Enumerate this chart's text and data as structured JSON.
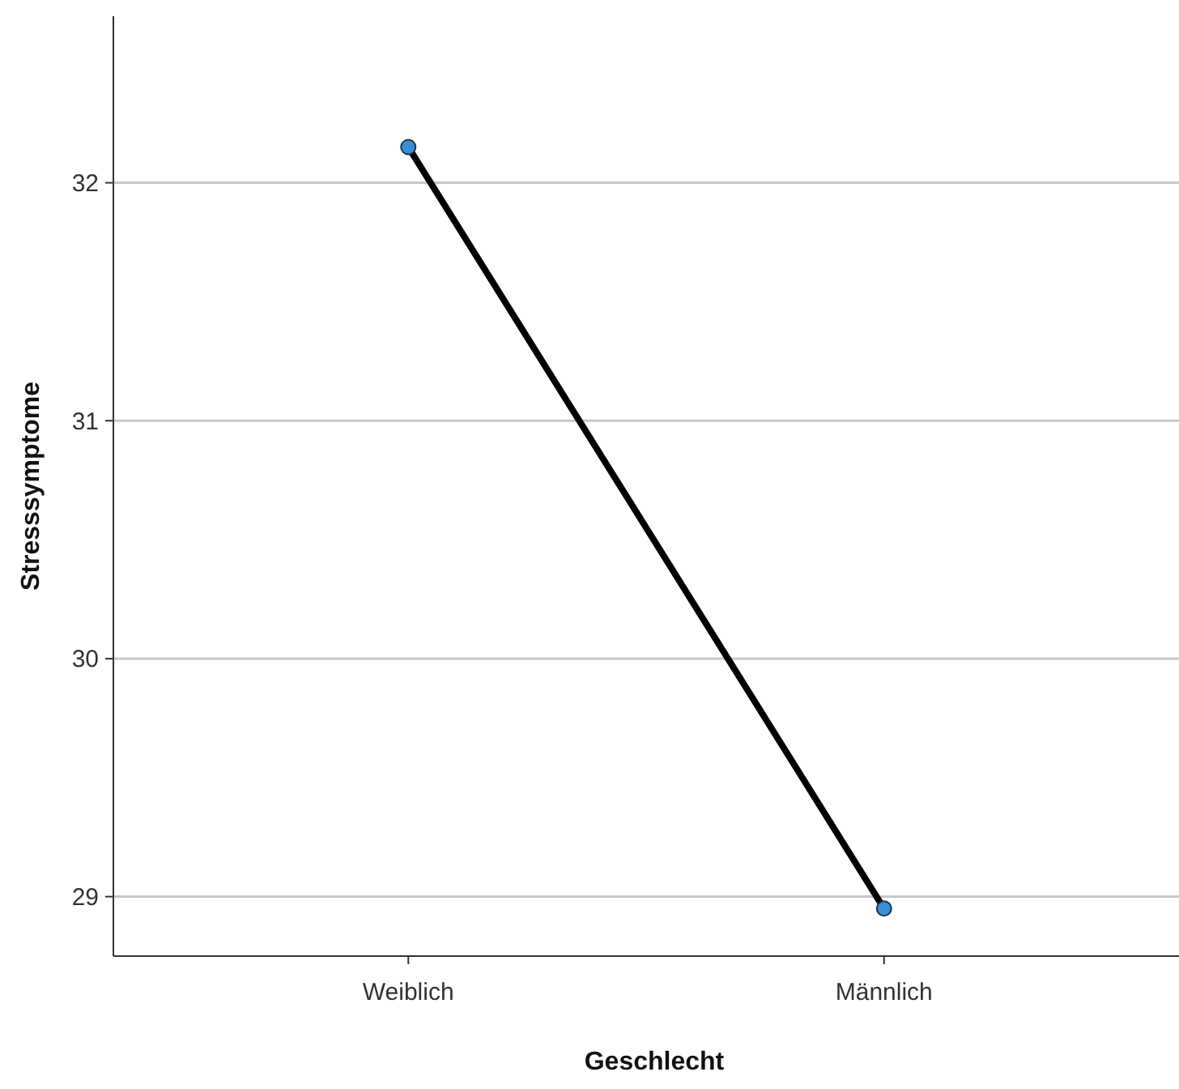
{
  "chart_data": {
    "type": "line",
    "xlabel": "Geschlecht",
    "ylabel": "Stresssymptome",
    "categories": [
      "Weiblich",
      "Männlich"
    ],
    "series": [
      {
        "color": "#000000",
        "marker": "none",
        "values": [
          32.15,
          28.95
        ]
      },
      {
        "type": "scatter",
        "color": "#3a8fd0",
        "marker": "circle",
        "values": [
          32.15,
          28.95
        ]
      }
    ],
    "ylim": [
      28.75,
      32.7
    ],
    "yticks": [
      29,
      30,
      31,
      32
    ],
    "grid": "y",
    "line_style": "solid"
  }
}
